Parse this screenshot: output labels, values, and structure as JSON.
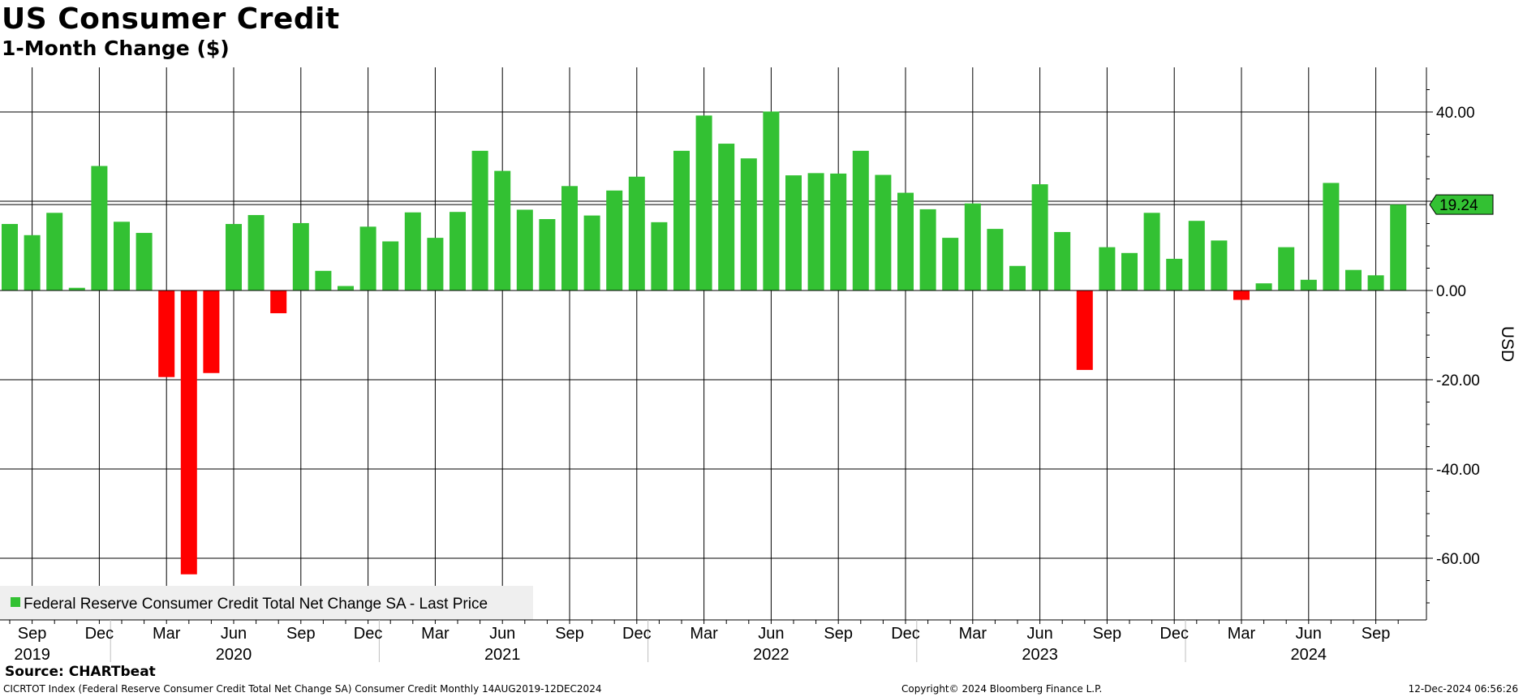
{
  "chart_data": {
    "type": "bar",
    "title": "US Consumer Credit",
    "subtitle": "1-Month Change ($)",
    "ylabel": "USD",
    "ylim": [
      -74,
      50
    ],
    "y_ticks": [
      40,
      20,
      0,
      -20,
      -40,
      -60
    ],
    "y_tick_labels": [
      "40.00",
      "20.00",
      "0.00",
      "-20.00",
      "-40.00",
      "-60.00"
    ],
    "grid": true,
    "legend_position": "bottom-left",
    "positive_color": "#33c133",
    "negative_color": "#ff0000",
    "categories": [
      "2019-08",
      "2019-09",
      "2019-10",
      "2019-11",
      "2019-12",
      "2020-01",
      "2020-02",
      "2020-03",
      "2020-04",
      "2020-05",
      "2020-06",
      "2020-07",
      "2020-08",
      "2020-09",
      "2020-10",
      "2020-11",
      "2020-12",
      "2021-01",
      "2021-02",
      "2021-03",
      "2021-04",
      "2021-05",
      "2021-06",
      "2021-07",
      "2021-08",
      "2021-09",
      "2021-10",
      "2021-11",
      "2021-12",
      "2022-01",
      "2022-02",
      "2022-03",
      "2022-04",
      "2022-05",
      "2022-06",
      "2022-07",
      "2022-08",
      "2022-09",
      "2022-10",
      "2022-11",
      "2022-12",
      "2023-01",
      "2023-02",
      "2023-03",
      "2023-04",
      "2023-05",
      "2023-06",
      "2023-07",
      "2023-08",
      "2023-09",
      "2023-10",
      "2023-11",
      "2023-12",
      "2024-01",
      "2024-02",
      "2024-03",
      "2024-04",
      "2024-05",
      "2024-06",
      "2024-07",
      "2024-08",
      "2024-09",
      "2024-10"
    ],
    "series": [
      {
        "name": "Federal Reserve Consumer Credit Total Net Change SA - Last Price",
        "values": [
          14.9,
          12.4,
          17.4,
          0.6,
          27.9,
          15.4,
          12.9,
          -19.4,
          -63.6,
          -18.5,
          14.9,
          16.9,
          -5.1,
          15.1,
          4.4,
          1.0,
          14.3,
          11.0,
          17.5,
          11.8,
          17.6,
          31.3,
          26.8,
          18.1,
          16.0,
          23.4,
          16.8,
          22.4,
          25.5,
          15.3,
          31.3,
          39.2,
          32.9,
          29.6,
          40.1,
          25.8,
          26.3,
          26.2,
          31.3,
          25.9,
          21.9,
          18.2,
          11.8,
          19.5,
          13.8,
          5.5,
          23.8,
          13.1,
          -17.8,
          9.7,
          8.4,
          17.4,
          7.1,
          15.6,
          11.2,
          -2.1,
          1.6,
          9.7,
          2.4,
          24.1,
          4.6,
          3.4,
          19.24
        ]
      }
    ],
    "x_month_labels": [
      {
        "i": 1,
        "label": "Sep"
      },
      {
        "i": 4,
        "label": "Dec"
      },
      {
        "i": 7,
        "label": "Mar"
      },
      {
        "i": 10,
        "label": "Jun"
      },
      {
        "i": 13,
        "label": "Sep"
      },
      {
        "i": 16,
        "label": "Dec"
      },
      {
        "i": 19,
        "label": "Mar"
      },
      {
        "i": 22,
        "label": "Jun"
      },
      {
        "i": 25,
        "label": "Sep"
      },
      {
        "i": 28,
        "label": "Dec"
      },
      {
        "i": 31,
        "label": "Mar"
      },
      {
        "i": 34,
        "label": "Jun"
      },
      {
        "i": 37,
        "label": "Sep"
      },
      {
        "i": 40,
        "label": "Dec"
      },
      {
        "i": 43,
        "label": "Mar"
      },
      {
        "i": 46,
        "label": "Jun"
      },
      {
        "i": 49,
        "label": "Sep"
      },
      {
        "i": 52,
        "label": "Dec"
      },
      {
        "i": 55,
        "label": "Mar"
      },
      {
        "i": 58,
        "label": "Jun"
      },
      {
        "i": 61,
        "label": "Sep"
      }
    ],
    "x_year_labels": [
      {
        "year": "2019",
        "center_i": 1
      },
      {
        "year": "2020",
        "center_i": 10
      },
      {
        "year": "2021",
        "center_i": 22
      },
      {
        "year": "2022",
        "center_i": 34
      },
      {
        "year": "2023",
        "center_i": 46
      },
      {
        "year": "2024",
        "center_i": 58
      }
    ],
    "last_value_label": "19.24"
  },
  "footer": {
    "source": "Source: CHARTbeat",
    "description": "CICRTOT Index (Federal Reserve Consumer Credit Total Net Change SA) Consumer Credit  Monthly 14AUG2019-12DEC2024",
    "copyright": "Copyright© 2024 Bloomberg Finance L.P.",
    "timestamp": "12-Dec-2024 06:56:26"
  }
}
